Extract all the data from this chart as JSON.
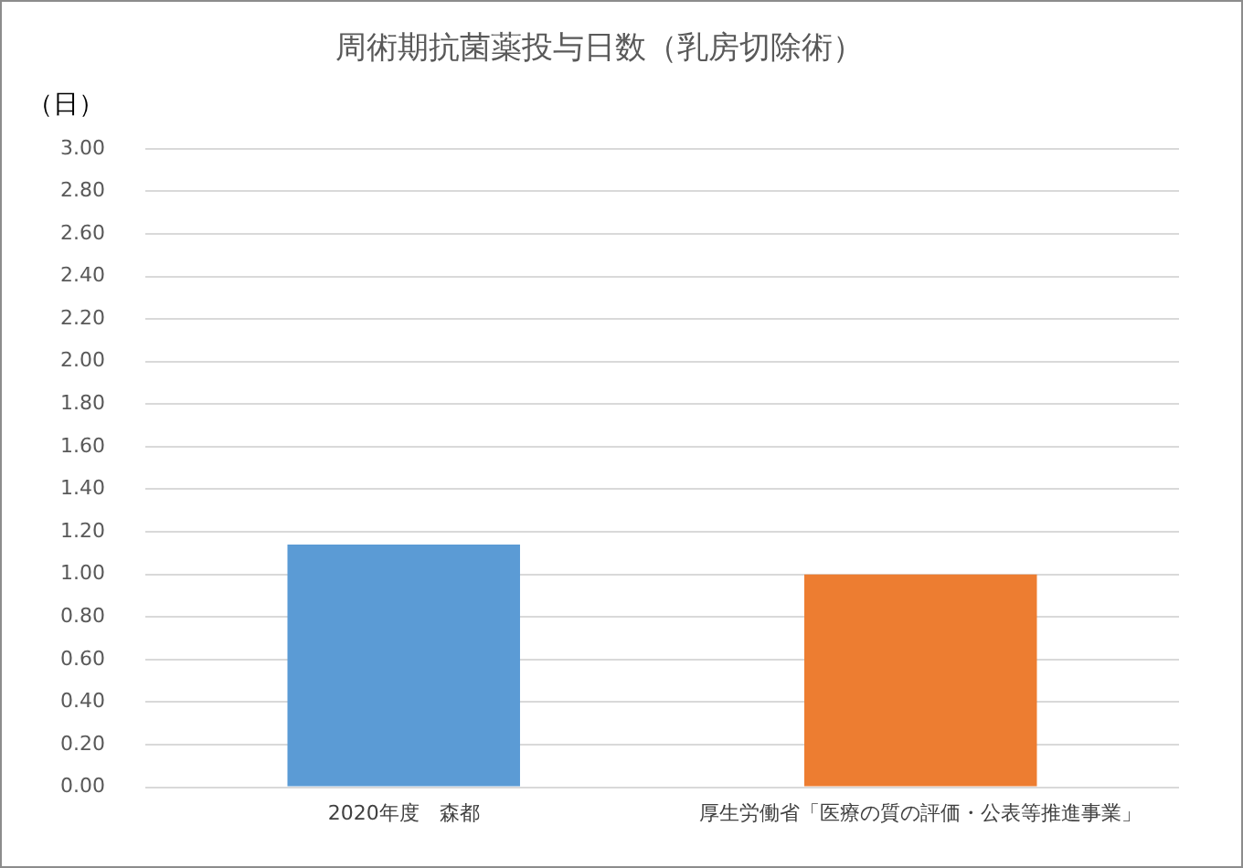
{
  "chart_data": {
    "type": "bar",
    "title": "周術期抗菌薬投与日数（乳房切除術）",
    "ylabel": "（日）",
    "categories": [
      "2020年度　森都",
      "厚生労働省「医療の質の評価・公表等推進事業」"
    ],
    "values": [
      1.14,
      1.0
    ],
    "colors": [
      "#5b9bd5",
      "#ed7d31"
    ],
    "ylim": [
      0,
      3
    ],
    "yticks": [
      {
        "value": 0,
        "label": "0.00"
      },
      {
        "value": 0.2,
        "label": "0.20"
      },
      {
        "value": 0.4,
        "label": "0.40"
      },
      {
        "value": 0.6,
        "label": "0.60"
      },
      {
        "value": 0.8,
        "label": "0.80"
      },
      {
        "value": 1,
        "label": "1.00"
      },
      {
        "value": 1.2,
        "label": "1.20"
      },
      {
        "value": 1.4,
        "label": "1.40"
      },
      {
        "value": 1.6,
        "label": "1.60"
      },
      {
        "value": 1.8,
        "label": "1.80"
      },
      {
        "value": 2,
        "label": "2.00"
      },
      {
        "value": 2.2,
        "label": "2.20"
      },
      {
        "value": 2.4,
        "label": "2.40"
      },
      {
        "value": 2.6,
        "label": "2.60"
      },
      {
        "value": 2.8,
        "label": "2.80"
      },
      {
        "value": 3,
        "label": "3.00"
      }
    ],
    "grid": "y",
    "legend": false
  }
}
